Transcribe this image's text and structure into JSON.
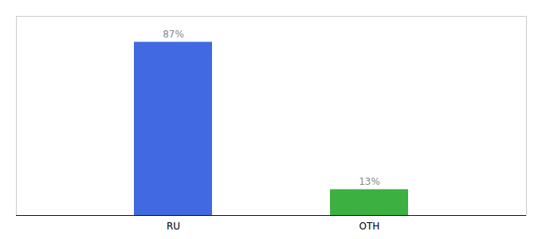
{
  "chart_data": {
    "type": "bar",
    "categories": [
      "RU",
      "OTH"
    ],
    "values": [
      87,
      13
    ],
    "value_labels": [
      "87%",
      "13%"
    ],
    "colors": [
      "#4169E1",
      "#3CB040"
    ],
    "ylim": [
      0,
      100
    ],
    "data_labels": true,
    "tick_labels": "x",
    "grid": false
  }
}
